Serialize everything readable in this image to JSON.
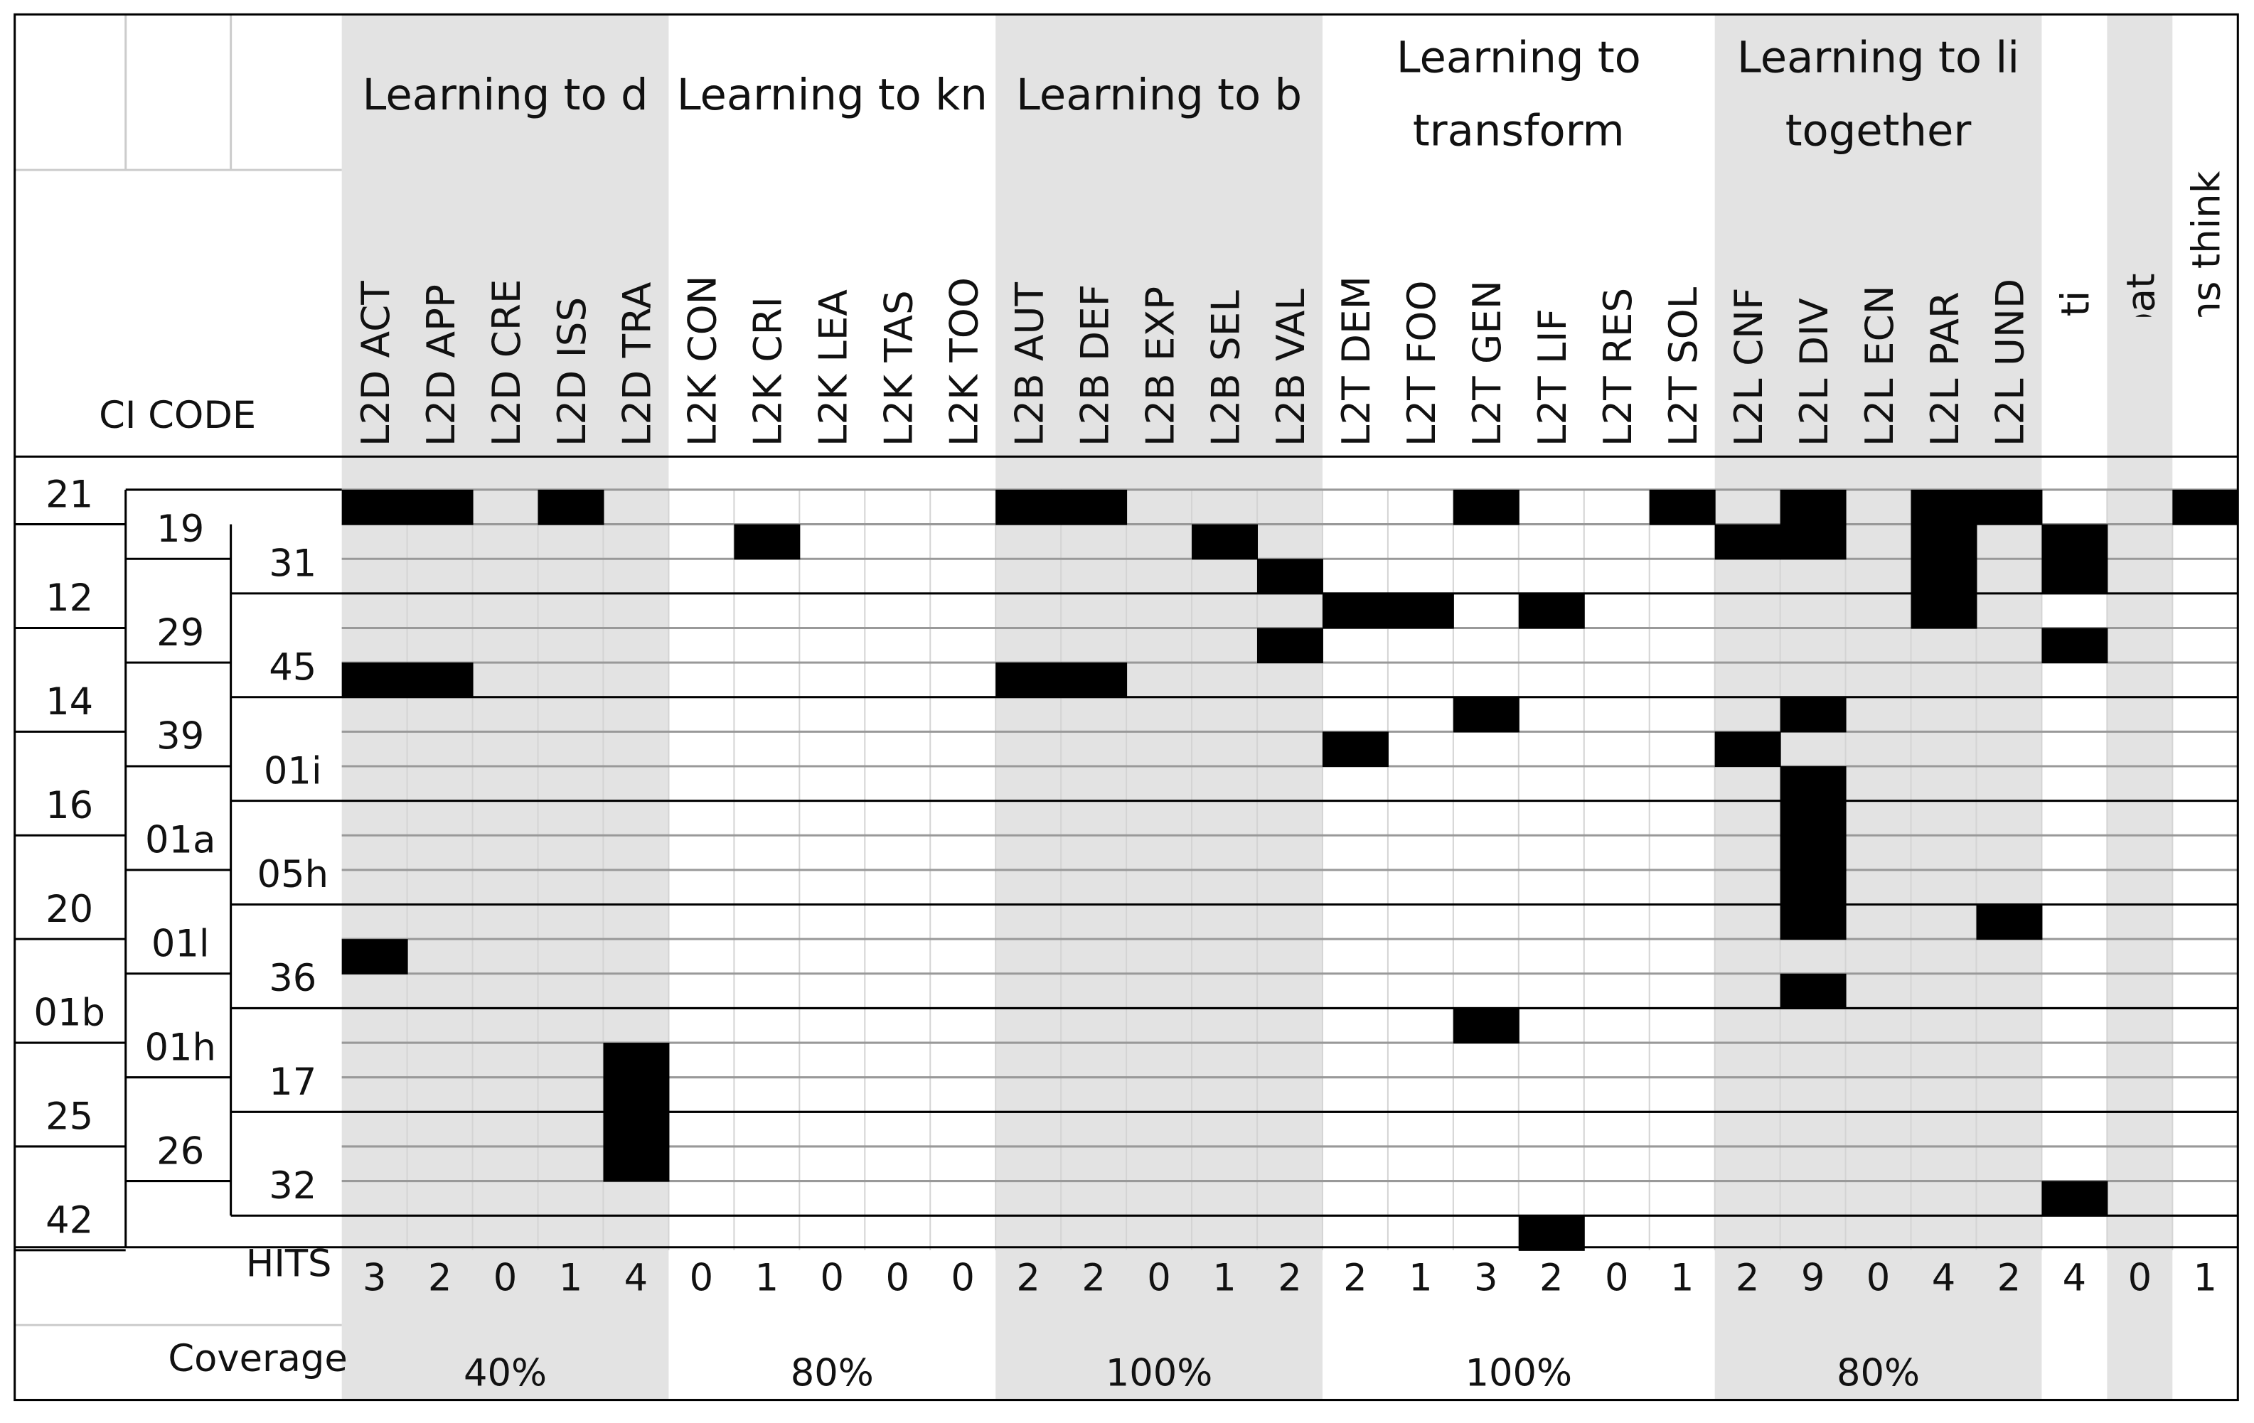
{
  "table": {
    "ci_code_label": "CI CODE",
    "groups": [
      {
        "lines": [
          "Learning to d"
        ],
        "coverage": "40%"
      },
      {
        "lines": [
          "Learning to kn"
        ],
        "coverage": "80%"
      },
      {
        "lines": [
          "Learning to b"
        ],
        "coverage": "100%"
      },
      {
        "lines": [
          "Learning to",
          "transform"
        ],
        "coverage": "100%"
      },
      {
        "lines": [
          "Learning to li",
          "together"
        ],
        "coverage": "80%"
      }
    ],
    "columns": [
      "L2D ACT",
      "L2D APP",
      "L2D CRE",
      "L2D ISS",
      "L2D TRA",
      "L2K CON",
      "L2K CRI",
      "L2K LEA",
      "L2K TAS",
      "L2K TOO",
      "L2B AUT",
      "L2B DEF",
      "L2B EXP",
      "L2B SEL",
      "L2B VAL",
      "L2T DEM",
      "L2T FOO",
      "L2T GEN",
      "L2T LIF",
      "L2T RES",
      "L2T SOL",
      "L2L CNF",
      "L2L DIV",
      "L2L ECN",
      "L2L PAR",
      "L2L UND",
      "Normati",
      "Anticipat",
      "Systems think"
    ],
    "rows": [
      {
        "code": "21",
        "cells": [
          1,
          1,
          0,
          1,
          0,
          0,
          0,
          0,
          0,
          0,
          1,
          1,
          0,
          0,
          0,
          0,
          0,
          1,
          0,
          0,
          1,
          0,
          1,
          0,
          1,
          1,
          0,
          0,
          1
        ]
      },
      {
        "code": "19",
        "cells": [
          0,
          0,
          0,
          0,
          0,
          0,
          1,
          0,
          0,
          0,
          0,
          0,
          0,
          1,
          0,
          0,
          0,
          0,
          0,
          0,
          0,
          1,
          1,
          0,
          1,
          0,
          1,
          0,
          0
        ]
      },
      {
        "code": "31",
        "cells": [
          0,
          0,
          0,
          0,
          0,
          0,
          0,
          0,
          0,
          0,
          0,
          0,
          0,
          0,
          1,
          0,
          0,
          0,
          0,
          0,
          0,
          0,
          0,
          0,
          1,
          0,
          1,
          0,
          0
        ]
      },
      {
        "code": "12",
        "cells": [
          0,
          0,
          0,
          0,
          0,
          0,
          0,
          0,
          0,
          0,
          0,
          0,
          0,
          0,
          0,
          1,
          1,
          0,
          1,
          0,
          0,
          0,
          0,
          0,
          1,
          0,
          0,
          0,
          0
        ]
      },
      {
        "code": "29",
        "cells": [
          0,
          0,
          0,
          0,
          0,
          0,
          0,
          0,
          0,
          0,
          0,
          0,
          0,
          0,
          1,
          0,
          0,
          0,
          0,
          0,
          0,
          0,
          0,
          0,
          0,
          0,
          1,
          0,
          0
        ]
      },
      {
        "code": "45",
        "cells": [
          1,
          1,
          0,
          0,
          0,
          0,
          0,
          0,
          0,
          0,
          1,
          1,
          0,
          0,
          0,
          0,
          0,
          0,
          0,
          0,
          0,
          0,
          0,
          0,
          0,
          0,
          0,
          0,
          0
        ]
      },
      {
        "code": "14",
        "cells": [
          0,
          0,
          0,
          0,
          0,
          0,
          0,
          0,
          0,
          0,
          0,
          0,
          0,
          0,
          0,
          0,
          0,
          1,
          0,
          0,
          0,
          0,
          1,
          0,
          0,
          0,
          0,
          0,
          0
        ]
      },
      {
        "code": "39",
        "cells": [
          0,
          0,
          0,
          0,
          0,
          0,
          0,
          0,
          0,
          0,
          0,
          0,
          0,
          0,
          0,
          1,
          0,
          0,
          0,
          0,
          0,
          1,
          0,
          0,
          0,
          0,
          0,
          0,
          0
        ]
      },
      {
        "code": "01i",
        "cells": [
          0,
          0,
          0,
          0,
          0,
          0,
          0,
          0,
          0,
          0,
          0,
          0,
          0,
          0,
          0,
          0,
          0,
          0,
          0,
          0,
          0,
          0,
          1,
          0,
          0,
          0,
          0,
          0,
          0
        ]
      },
      {
        "code": "16",
        "cells": [
          0,
          0,
          0,
          0,
          0,
          0,
          0,
          0,
          0,
          0,
          0,
          0,
          0,
          0,
          0,
          0,
          0,
          0,
          0,
          0,
          0,
          0,
          1,
          0,
          0,
          0,
          0,
          0,
          0
        ]
      },
      {
        "code": "01a",
        "cells": [
          0,
          0,
          0,
          0,
          0,
          0,
          0,
          0,
          0,
          0,
          0,
          0,
          0,
          0,
          0,
          0,
          0,
          0,
          0,
          0,
          0,
          0,
          1,
          0,
          0,
          0,
          0,
          0,
          0
        ]
      },
      {
        "code": "05h",
        "cells": [
          0,
          0,
          0,
          0,
          0,
          0,
          0,
          0,
          0,
          0,
          0,
          0,
          0,
          0,
          0,
          0,
          0,
          0,
          0,
          0,
          0,
          0,
          1,
          0,
          0,
          0,
          0,
          0,
          0
        ]
      },
      {
        "code": "20",
        "cells": [
          0,
          0,
          0,
          0,
          0,
          0,
          0,
          0,
          0,
          0,
          0,
          0,
          0,
          0,
          0,
          0,
          0,
          0,
          0,
          0,
          0,
          0,
          1,
          0,
          0,
          1,
          0,
          0,
          0
        ]
      },
      {
        "code": "01l",
        "cells": [
          1,
          0,
          0,
          0,
          0,
          0,
          0,
          0,
          0,
          0,
          0,
          0,
          0,
          0,
          0,
          0,
          0,
          0,
          0,
          0,
          0,
          0,
          0,
          0,
          0,
          0,
          0,
          0,
          0
        ]
      },
      {
        "code": "36",
        "cells": [
          0,
          0,
          0,
          0,
          0,
          0,
          0,
          0,
          0,
          0,
          0,
          0,
          0,
          0,
          0,
          0,
          0,
          0,
          0,
          0,
          0,
          0,
          1,
          0,
          0,
          0,
          0,
          0,
          0
        ]
      },
      {
        "code": "01b",
        "cells": [
          0,
          0,
          0,
          0,
          0,
          0,
          0,
          0,
          0,
          0,
          0,
          0,
          0,
          0,
          0,
          0,
          0,
          1,
          0,
          0,
          0,
          0,
          0,
          0,
          0,
          0,
          0,
          0,
          0
        ]
      },
      {
        "code": "01h",
        "cells": [
          0,
          0,
          0,
          0,
          1,
          0,
          0,
          0,
          0,
          0,
          0,
          0,
          0,
          0,
          0,
          0,
          0,
          0,
          0,
          0,
          0,
          0,
          0,
          0,
          0,
          0,
          0,
          0,
          0
        ]
      },
      {
        "code": "17",
        "cells": [
          0,
          0,
          0,
          0,
          1,
          0,
          0,
          0,
          0,
          0,
          0,
          0,
          0,
          0,
          0,
          0,
          0,
          0,
          0,
          0,
          0,
          0,
          0,
          0,
          0,
          0,
          0,
          0,
          0
        ]
      },
      {
        "code": "25",
        "cells": [
          0,
          0,
          0,
          0,
          1,
          0,
          0,
          0,
          0,
          0,
          0,
          0,
          0,
          0,
          0,
          0,
          0,
          0,
          0,
          0,
          0,
          0,
          0,
          0,
          0,
          0,
          0,
          0,
          0
        ]
      },
      {
        "code": "26",
        "cells": [
          0,
          0,
          0,
          0,
          1,
          0,
          0,
          0,
          0,
          0,
          0,
          0,
          0,
          0,
          0,
          0,
          0,
          0,
          0,
          0,
          0,
          0,
          0,
          0,
          0,
          0,
          0,
          0,
          0
        ]
      },
      {
        "code": "32",
        "cells": [
          0,
          0,
          0,
          0,
          0,
          0,
          0,
          0,
          0,
          0,
          0,
          0,
          0,
          0,
          0,
          0,
          0,
          0,
          0,
          0,
          0,
          0,
          0,
          0,
          0,
          0,
          1,
          0,
          0
        ]
      },
      {
        "code": "42",
        "cells": [
          0,
          0,
          0,
          0,
          0,
          0,
          0,
          0,
          0,
          0,
          0,
          0,
          0,
          0,
          0,
          0,
          0,
          0,
          1,
          0,
          0,
          0,
          0,
          0,
          0,
          0,
          0,
          0,
          0
        ]
      }
    ],
    "hits_label": "HITS",
    "hits": [
      3,
      2,
      0,
      1,
      4,
      0,
      1,
      0,
      0,
      0,
      2,
      2,
      0,
      1,
      2,
      2,
      1,
      3,
      2,
      0,
      1,
      2,
      9,
      0,
      4,
      2,
      4,
      0,
      1
    ],
    "coverage_label": "Coverage"
  }
}
